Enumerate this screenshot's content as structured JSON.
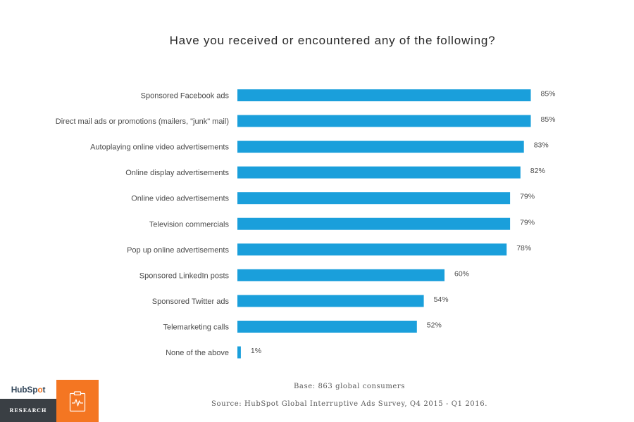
{
  "chart_data": {
    "type": "bar",
    "orientation": "horizontal",
    "title": "Have you received or encountered any of the following?",
    "categories": [
      "Sponsored Facebook ads",
      "Direct mail ads or promotions (mailers, \"junk\" mail)",
      "Autoplaying online video advertisements",
      "Online display advertisements",
      "Online video advertisements",
      "Television commercials",
      "Pop up online advertisements",
      "Sponsored LinkedIn posts",
      "Sponsored Twitter ads",
      "Telemarketing calls",
      "None of the above"
    ],
    "values": [
      85,
      85,
      83,
      82,
      79,
      79,
      78,
      60,
      54,
      52,
      1
    ],
    "value_labels": [
      "85%",
      "85%",
      "83%",
      "82%",
      "79%",
      "79%",
      "78%",
      "60%",
      "54%",
      "52%",
      "1%"
    ],
    "unit": "%",
    "xlabel": "",
    "ylabel": "",
    "xlim": [
      0,
      100
    ],
    "grid": false,
    "legend": "none",
    "bar_color": "#1a9fdb"
  },
  "footer": {
    "base": "Base: 863 global consumers",
    "source": "Source: HubSpot Global Interruptive Ads Survey, Q4 2015 - Q1 2016."
  },
  "branding": {
    "logo_part1": "HubSp",
    "logo_part2": "o",
    "logo_part3": "t",
    "tag": "RESEARCH",
    "icon": "clipboard-pulse-icon",
    "logo_color": "#33475b",
    "accent_color": "#f47622",
    "tag_background": "#3a3f44"
  }
}
